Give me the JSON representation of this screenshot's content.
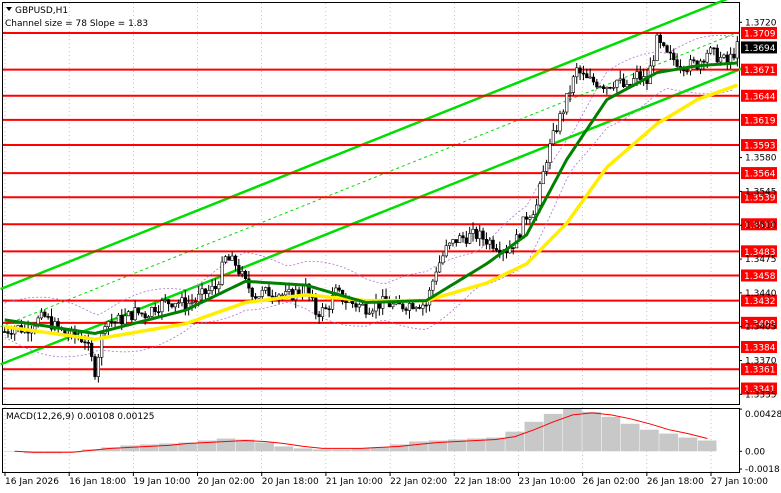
{
  "header": {
    "symbol": "GBPUSD,H1",
    "channel_info": "Channel size = 78 Slope = 1.83"
  },
  "colors": {
    "background": "#ffffff",
    "level_line": "#ff0000",
    "channel": "#00dd00",
    "ma_fast": "#008000",
    "ma_slow": "#ffee00",
    "envelope": "#b070d0",
    "candle": "#000000",
    "macd_hist": "#c8c8c8",
    "macd_signal": "#ff0000",
    "current_price_tag": "#000000"
  },
  "chart_data": [
    {
      "type": "candlestick",
      "title": "GBPUSD,H1",
      "subtitle": "Channel size = 78 Slope = 1.83",
      "ylim": [
        1.3325,
        1.374
      ],
      "y_ticks": [
        "1.3720",
        "1.3580",
        "1.3545",
        "1.3510",
        "1.3475",
        "1.3440",
        "1.3405",
        "1.3370",
        "1.3335"
      ],
      "x_ticks": [
        "16 Jan 2026",
        "16 Jan 18:00",
        "19 Jan 10:00",
        "20 Jan 02:00",
        "20 Jan 18:00",
        "21 Jan 10:00",
        "22 Jan 02:00",
        "22 Jan 18:00",
        "23 Jan 10:00",
        "26 Jan 02:00",
        "26 Jan 18:00",
        "27 Jan 10:00"
      ],
      "current_price": "1.3694",
      "levels": [
        "1.3709",
        "1.3671",
        "1.3644",
        "1.3619",
        "1.3593",
        "1.3564",
        "1.3539",
        "1.3511",
        "1.3483",
        "1.3458",
        "1.3432",
        "1.3409",
        "1.3384",
        "1.3361",
        "1.3341"
      ],
      "level_values": [
        1.3709,
        1.3671,
        1.3644,
        1.3619,
        1.3593,
        1.3564,
        1.3539,
        1.3511,
        1.3483,
        1.3458,
        1.3432,
        1.3409,
        1.3384,
        1.3361,
        1.3341
      ],
      "close_path": [
        [
          0,
          1.34
        ],
        [
          3,
          1.3405
        ],
        [
          6,
          1.3402
        ],
        [
          9,
          1.341
        ],
        [
          12,
          1.3415
        ],
        [
          15,
          1.3405
        ],
        [
          18,
          1.3398
        ],
        [
          21,
          1.3395
        ],
        [
          24,
          1.3392
        ],
        [
          27,
          1.336
        ],
        [
          30,
          1.3412
        ],
        [
          33,
          1.341
        ],
        [
          36,
          1.3414
        ],
        [
          39,
          1.342
        ],
        [
          42,
          1.3418
        ],
        [
          45,
          1.3426
        ],
        [
          48,
          1.343
        ],
        [
          51,
          1.3432
        ],
        [
          54,
          1.3428
        ],
        [
          57,
          1.3432
        ],
        [
          60,
          1.344
        ],
        [
          63,
          1.3445
        ],
        [
          66,
          1.3475
        ],
        [
          69,
          1.347
        ],
        [
          72,
          1.345
        ],
        [
          75,
          1.3438
        ],
        [
          78,
          1.344
        ],
        [
          81,
          1.3442
        ],
        [
          84,
          1.3436
        ],
        [
          87,
          1.344
        ],
        [
          90,
          1.3445
        ],
        [
          93,
          1.342
        ],
        [
          96,
          1.3422
        ],
        [
          99,
          1.344
        ],
        [
          102,
          1.3432
        ],
        [
          105,
          1.3428
        ],
        [
          108,
          1.3425
        ],
        [
          111,
          1.3428
        ],
        [
          114,
          1.343
        ],
        [
          117,
          1.3425
        ],
        [
          120,
          1.3428
        ],
        [
          123,
          1.343
        ],
        [
          126,
          1.3428
        ],
        [
          129,
          1.3465
        ],
        [
          132,
          1.3485
        ],
        [
          135,
          1.3495
        ],
        [
          138,
          1.3498
        ],
        [
          141,
          1.35
        ],
        [
          144,
          1.3495
        ],
        [
          147,
          1.349
        ],
        [
          150,
          1.3485
        ],
        [
          153,
          1.3495
        ],
        [
          156,
          1.352
        ],
        [
          159,
          1.353
        ],
        [
          162,
          1.358
        ],
        [
          165,
          1.3612
        ],
        [
          168,
          1.364
        ],
        [
          171,
          1.367
        ],
        [
          174,
          1.366
        ],
        [
          177,
          1.3658
        ],
        [
          180,
          1.3655
        ],
        [
          183,
          1.366
        ],
        [
          186,
          1.365
        ],
        [
          189,
          1.3665
        ],
        [
          192,
          1.3658
        ],
        [
          195,
          1.37
        ],
        [
          198,
          1.3685
        ],
        [
          201,
          1.368
        ],
        [
          204,
          1.3675
        ],
        [
          207,
          1.3677
        ],
        [
          210,
          1.369
        ],
        [
          213,
          1.3685
        ],
        [
          216,
          1.3678
        ],
        [
          219,
          1.3694
        ]
      ],
      "ma_fast": [
        [
          0,
          1.3412
        ],
        [
          27,
          1.3398
        ],
        [
          54,
          1.3422
        ],
        [
          72,
          1.3452
        ],
        [
          90,
          1.3448
        ],
        [
          108,
          1.343
        ],
        [
          126,
          1.3432
        ],
        [
          144,
          1.347
        ],
        [
          156,
          1.35
        ],
        [
          168,
          1.3578
        ],
        [
          180,
          1.364
        ],
        [
          195,
          1.3668
        ],
        [
          207,
          1.3675
        ],
        [
          219,
          1.3678
        ]
      ],
      "ma_slow": [
        [
          0,
          1.3405
        ],
        [
          27,
          1.3392
        ],
        [
          54,
          1.3408
        ],
        [
          72,
          1.343
        ],
        [
          90,
          1.3438
        ],
        [
          108,
          1.3432
        ],
        [
          126,
          1.3432
        ],
        [
          144,
          1.345
        ],
        [
          156,
          1.347
        ],
        [
          168,
          1.3512
        ],
        [
          180,
          1.357
        ],
        [
          195,
          1.3615
        ],
        [
          207,
          1.364
        ],
        [
          219,
          1.3655
        ]
      ],
      "channel_upper": [
        [
          0,
          1.3444
        ],
        [
          219,
          1.375
        ]
      ],
      "channel_lower": [
        [
          0,
          1.3366
        ],
        [
          219,
          1.3672
        ]
      ],
      "channel_mid": [
        [
          0,
          1.3405
        ],
        [
          219,
          1.3711
        ]
      ]
    },
    {
      "type": "bar",
      "title": "MACD(12,26,9) 0.00108 0.00125",
      "ylim": [
        -0.0021,
        0.0043
      ],
      "y_ticks": [
        "0.004287",
        "0.00",
        "-0.0018"
      ],
      "series": [
        {
          "name": "MACD(12,26,9)",
          "values": [
            0.0,
            -0.0002,
            -0.0002,
            -0.0001,
            0.0002,
            0.0004,
            0.0006,
            0.0007,
            0.0008,
            0.0009,
            0.0011,
            0.0013,
            0.0012,
            0.0009,
            0.0005,
            0.0003,
            0.0002,
            0.0002,
            0.0003,
            0.0004,
            0.0007,
            0.001,
            0.0011,
            0.0012,
            0.0013,
            0.0014,
            0.002,
            0.003,
            0.0038,
            0.0043,
            0.004,
            0.0035,
            0.0028,
            0.0022,
            0.0018,
            0.0014,
            0.0011
          ]
        },
        {
          "name": "signal",
          "values": [
            0.0,
            -0.0001,
            -0.0001,
            -0.0001,
            0.0001,
            0.0003,
            0.0004,
            0.0005,
            0.0006,
            0.0008,
            0.0009,
            0.001,
            0.0011,
            0.001,
            0.0008,
            0.0005,
            0.0003,
            0.0003,
            0.0003,
            0.0004,
            0.0005,
            0.0007,
            0.0009,
            0.001,
            0.0011,
            0.0012,
            0.0015,
            0.0022,
            0.003,
            0.0037,
            0.0039,
            0.0037,
            0.0033,
            0.0028,
            0.0022,
            0.0018,
            0.0013
          ]
        }
      ]
    }
  ]
}
